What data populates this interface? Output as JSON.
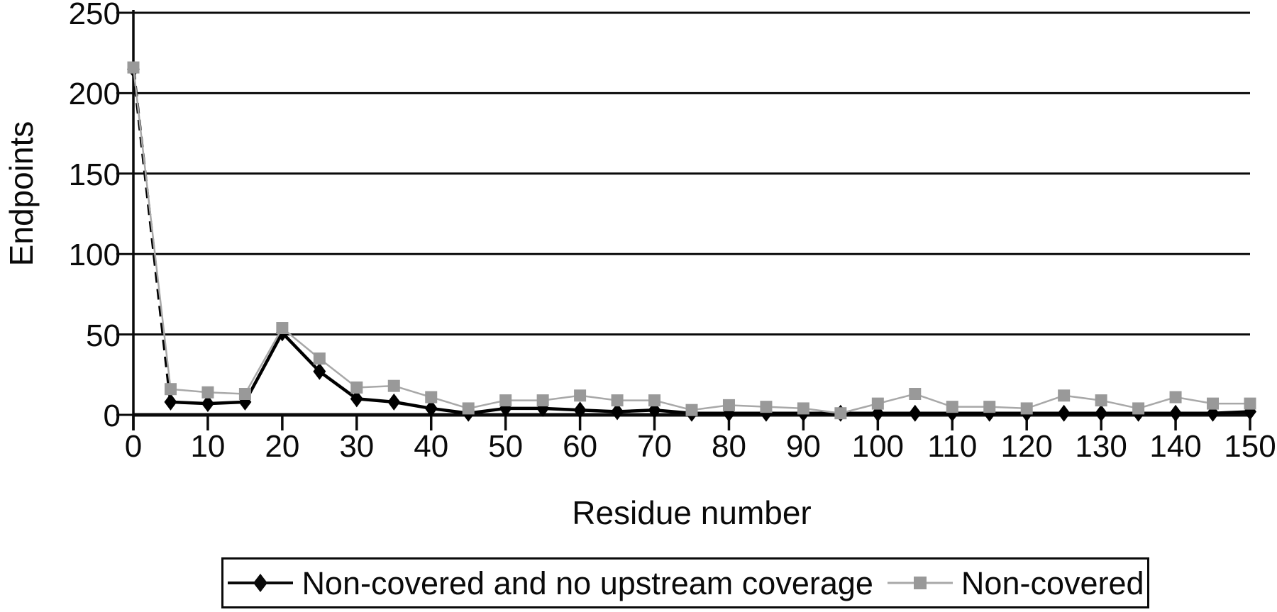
{
  "chart_data": {
    "type": "line",
    "title": "",
    "xlabel": "Residue number",
    "ylabel": "Endpoints",
    "x": [
      0,
      5,
      10,
      15,
      20,
      25,
      30,
      35,
      40,
      45,
      50,
      55,
      60,
      65,
      70,
      75,
      80,
      85,
      90,
      95,
      100,
      105,
      110,
      115,
      120,
      125,
      130,
      135,
      140,
      145,
      150
    ],
    "series": [
      {
        "name": "Non-covered and no upstream coverage",
        "marker": "diamond",
        "color": "#000000",
        "line_color": "#000000",
        "line_width": 4.5,
        "values": [
          215,
          8,
          7,
          8,
          51,
          27,
          10,
          8,
          4,
          1,
          4,
          4,
          3,
          2,
          3,
          1,
          1,
          1,
          1,
          1,
          1,
          1,
          1,
          1,
          1,
          1,
          1,
          1,
          1,
          1,
          2
        ]
      },
      {
        "name": "Non-covered",
        "marker": "square",
        "color": "#999999",
        "line_color": "#a8a8a8",
        "line_width": 2.5,
        "values": [
          216,
          16,
          14,
          13,
          54,
          35,
          17,
          18,
          11,
          4,
          9,
          9,
          12,
          9,
          9,
          3,
          6,
          5,
          4,
          1,
          7,
          13,
          5,
          5,
          4,
          12,
          9,
          4,
          11,
          7,
          7
        ]
      }
    ],
    "xlim": [
      0,
      150
    ],
    "ylim": [
      0,
      250
    ],
    "xticks": [
      0,
      10,
      20,
      30,
      40,
      50,
      60,
      70,
      80,
      90,
      100,
      110,
      120,
      130,
      140,
      150
    ],
    "yticks": [
      0,
      50,
      100,
      150,
      200,
      250
    ],
    "grid": "horizontal-only",
    "legend_position": "bottom-center",
    "axis_color": "#0a0a0a"
  }
}
